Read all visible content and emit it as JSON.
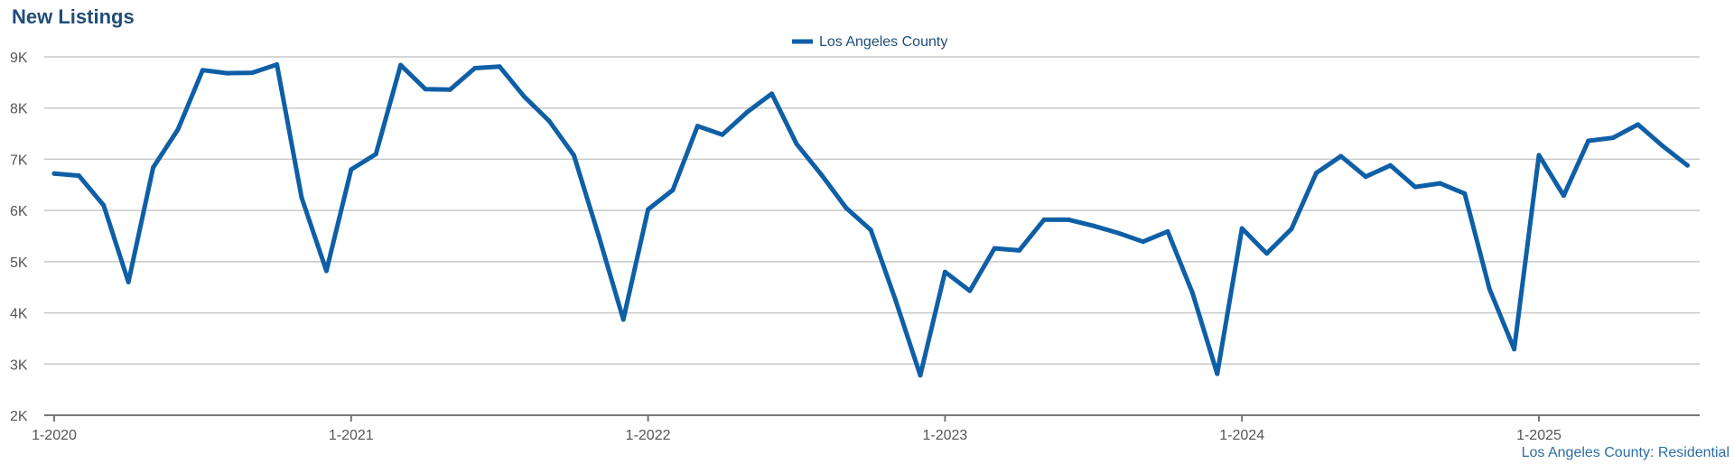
{
  "chart_data": {
    "type": "line",
    "title": "New Listings",
    "footer": "Los Angeles County: Residential",
    "legend_position": "top-center",
    "grid": true,
    "x_start": "2020-01",
    "x_end": "2025-07",
    "x_ticks": [
      "1-2020",
      "1-2021",
      "1-2022",
      "1-2023",
      "1-2024",
      "1-2025"
    ],
    "y_ticks": [
      "2K",
      "3K",
      "4K",
      "5K",
      "6K",
      "7K",
      "8K",
      "9K"
    ],
    "ylim": [
      2000,
      9000
    ],
    "colors": {
      "series": "#0e5fa6",
      "title": "#1f4e79"
    },
    "series": [
      {
        "name": "Los Angeles County",
        "values": [
          6720,
          6680,
          6100,
          4600,
          6840,
          7580,
          8740,
          8680,
          8690,
          8850,
          6250,
          4820,
          6800,
          7100,
          8840,
          8370,
          8360,
          8780,
          8810,
          8220,
          7750,
          7080,
          5510,
          3870,
          6020,
          6400,
          7650,
          7480,
          7920,
          8280,
          7300,
          6700,
          6050,
          5620,
          4250,
          2780,
          4800,
          4430,
          5260,
          5220,
          5820,
          5820,
          5700,
          5560,
          5390,
          5590,
          4390,
          2810,
          5650,
          5160,
          5640,
          6730,
          7060,
          6660,
          6880,
          6460,
          6530,
          6330,
          4470,
          3290,
          7080,
          6290,
          7360,
          7420,
          7680,
          7260,
          6880
        ]
      }
    ]
  }
}
